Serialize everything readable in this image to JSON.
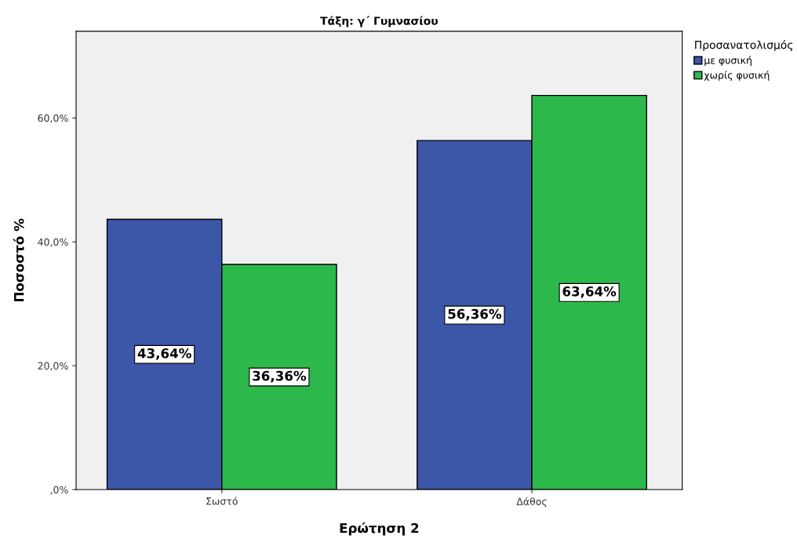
{
  "chart_data": {
    "type": "bar",
    "title": "Τάξη: γ΄ Γυμνασίου",
    "xlabel": "Ερώτηση 2",
    "ylabel": "Ποσοστό %",
    "legend_title": "Προσανατολισμός",
    "categories": [
      "Σωστό",
      "Δάθος"
    ],
    "series": [
      {
        "name": "με φυσική",
        "color": "#3c56a8",
        "values": [
          43.64,
          56.36
        ],
        "value_labels": [
          "43,64%",
          "56,36%"
        ]
      },
      {
        "name": "χωρίς φυσική",
        "color": "#2db84b",
        "values": [
          36.36,
          63.64
        ],
        "value_labels": [
          "36,36%",
          "63,64%"
        ]
      }
    ],
    "ylim": [
      0,
      74
    ],
    "yticks": [
      {
        "value": 0,
        "label": ",0%"
      },
      {
        "value": 20,
        "label": "20,0%"
      },
      {
        "value": 40,
        "label": "40,0%"
      },
      {
        "value": 60,
        "label": "60,0%"
      }
    ],
    "grid": false,
    "legend": "top right"
  }
}
